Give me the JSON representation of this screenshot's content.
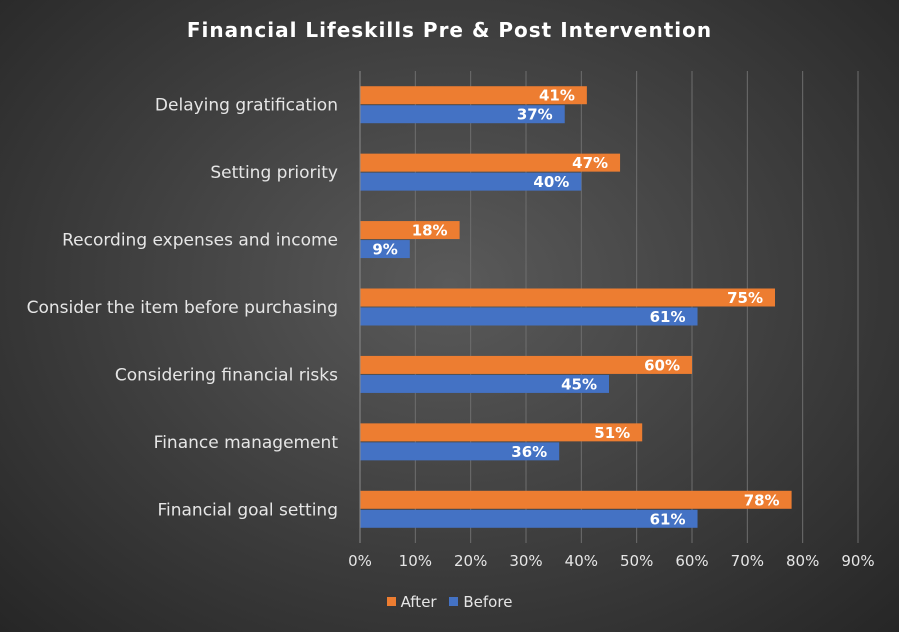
{
  "chart_data": {
    "type": "bar",
    "orientation": "horizontal",
    "title": "Financial  Lifeskills Pre & Post Intervention",
    "categories": [
      "Delaying gratification",
      "Setting priority",
      "Recording expenses and income",
      "Consider the item before purchasing",
      "Considering financial risks",
      "Finance management",
      "Financial goal setting"
    ],
    "series": [
      {
        "name": "After",
        "color": "#ed7d31",
        "values": [
          41,
          47,
          18,
          75,
          60,
          51,
          78
        ]
      },
      {
        "name": "Before",
        "color": "#4472c4",
        "values": [
          37,
          40,
          9,
          61,
          45,
          36,
          61
        ]
      }
    ],
    "xlim": [
      0,
      90
    ],
    "xticks": [
      "0%",
      "10%",
      "20%",
      "30%",
      "40%",
      "50%",
      "60%",
      "70%",
      "80%",
      "90%"
    ],
    "value_suffix": "%",
    "grid": true,
    "legend_position": "bottom"
  }
}
